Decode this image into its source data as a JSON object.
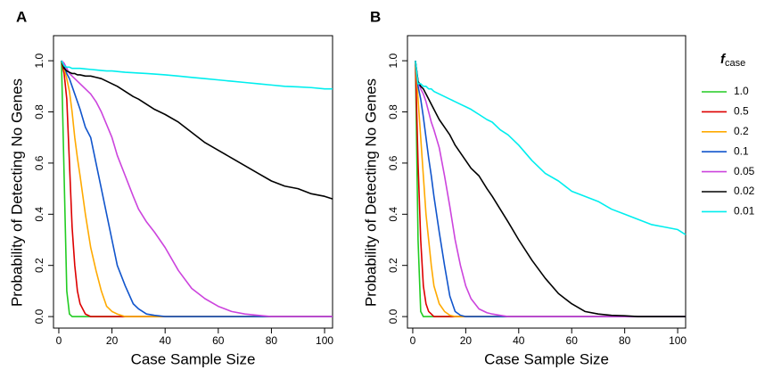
{
  "chart_data": [
    {
      "type": "line",
      "panel_label": "A",
      "x_label": "Case Sample Size",
      "y_label": "Probability of Detecting No Genes",
      "x": [
        1,
        2,
        3,
        4,
        5,
        6,
        7,
        8,
        10,
        12,
        14,
        16,
        18,
        20,
        22,
        25,
        28,
        30,
        33,
        36,
        40,
        45,
        50,
        55,
        60,
        65,
        70,
        75,
        80,
        85,
        90,
        95,
        100,
        103
      ],
      "xlim": [
        -2,
        103
      ],
      "xticks": [
        0,
        20,
        40,
        60,
        80,
        100
      ],
      "ylim": [
        -0.045,
        1.098
      ],
      "yticks": [
        {
          "value": 0,
          "label": "0.0"
        },
        0.2,
        0.4,
        0.6,
        0.8,
        {
          "value": 1,
          "label": "1.0"
        }
      ],
      "series": [
        {
          "name": "1.0",
          "color": "#22cc22",
          "values": [
            1,
            0.55,
            0.1,
            0.01,
            0,
            0,
            0,
            0,
            0,
            0,
            0,
            0,
            0,
            0,
            0,
            0,
            0,
            0,
            0,
            0,
            0,
            0,
            0,
            0,
            0,
            0,
            0,
            0,
            0,
            0,
            0,
            0,
            0,
            0
          ]
        },
        {
          "name": "0.5",
          "color": "#dd0000",
          "values": [
            1,
            0.95,
            0.85,
            0.6,
            0.35,
            0.2,
            0.1,
            0.05,
            0.01,
            0,
            0,
            0,
            0,
            0,
            0,
            0,
            0,
            0,
            0,
            0,
            0,
            0,
            0,
            0,
            0,
            0,
            0,
            0,
            0,
            0,
            0,
            0,
            0,
            0
          ]
        },
        {
          "name": "0.2",
          "color": "#ffaa00",
          "values": [
            1,
            0.97,
            0.93,
            0.88,
            0.8,
            0.7,
            0.62,
            0.55,
            0.4,
            0.27,
            0.18,
            0.1,
            0.04,
            0.02,
            0.01,
            0,
            0,
            0,
            0,
            0,
            0,
            0,
            0,
            0,
            0,
            0,
            0,
            0,
            0,
            0,
            0,
            0,
            0,
            0
          ]
        },
        {
          "name": "0.1",
          "color": "#1155cc",
          "values": [
            1,
            0.98,
            0.95,
            0.93,
            0.9,
            0.87,
            0.84,
            0.81,
            0.74,
            0.7,
            0.6,
            0.5,
            0.4,
            0.3,
            0.2,
            0.12,
            0.05,
            0.03,
            0.01,
            0.005,
            0,
            0,
            0,
            0,
            0,
            0,
            0,
            0,
            0,
            0,
            0,
            0,
            0,
            0
          ]
        },
        {
          "name": "0.05",
          "color": "#cc44dd",
          "values": [
            1,
            0.99,
            0.97,
            0.95,
            0.94,
            0.93,
            0.92,
            0.91,
            0.89,
            0.87,
            0.84,
            0.8,
            0.75,
            0.7,
            0.63,
            0.55,
            0.47,
            0.42,
            0.37,
            0.33,
            0.27,
            0.18,
            0.11,
            0.07,
            0.04,
            0.02,
            0.01,
            0.005,
            0,
            0,
            0,
            0,
            0,
            0
          ]
        },
        {
          "name": "0.02",
          "color": "#000000",
          "values": [
            1,
            0.97,
            0.96,
            0.955,
            0.95,
            0.95,
            0.945,
            0.945,
            0.94,
            0.94,
            0.935,
            0.93,
            0.92,
            0.91,
            0.9,
            0.88,
            0.86,
            0.85,
            0.83,
            0.81,
            0.79,
            0.76,
            0.72,
            0.68,
            0.65,
            0.62,
            0.59,
            0.56,
            0.53,
            0.51,
            0.5,
            0.48,
            0.47,
            0.46
          ]
        },
        {
          "name": "0.01",
          "color": "#00eeee",
          "values": [
            1,
            0.98,
            0.975,
            0.975,
            0.97,
            0.97,
            0.97,
            0.97,
            0.968,
            0.966,
            0.964,
            0.962,
            0.96,
            0.96,
            0.958,
            0.955,
            0.953,
            0.952,
            0.95,
            0.948,
            0.945,
            0.94,
            0.935,
            0.93,
            0.925,
            0.92,
            0.915,
            0.91,
            0.905,
            0.9,
            0.898,
            0.895,
            0.89,
            0.89
          ]
        }
      ]
    },
    {
      "type": "line",
      "panel_label": "B",
      "x_label": "Case Sample Size",
      "y_label": "Probability of Detecting No Genes",
      "x": [
        1,
        2,
        3,
        4,
        5,
        6,
        7,
        8,
        10,
        12,
        14,
        16,
        18,
        20,
        22,
        25,
        28,
        30,
        33,
        36,
        40,
        45,
        50,
        55,
        60,
        65,
        70,
        75,
        80,
        85,
        90,
        95,
        100,
        103
      ],
      "xlim": [
        -2,
        103
      ],
      "xticks": [
        0,
        20,
        40,
        60,
        80,
        100
      ],
      "ylim": [
        -0.045,
        1.098
      ],
      "yticks": [
        {
          "value": 0,
          "label": "0.0"
        },
        0.2,
        0.4,
        0.6,
        0.8,
        {
          "value": 1,
          "label": "1.0"
        }
      ],
      "legend": "outside right",
      "legend_title": "f",
      "legend_title_subscript": "case",
      "series": [
        {
          "name": "1.0",
          "color": "#22cc22",
          "values": [
            1,
            0.3,
            0.02,
            0,
            0,
            0,
            0,
            0,
            0,
            0,
            0,
            0,
            0,
            0,
            0,
            0,
            0,
            0,
            0,
            0,
            0,
            0,
            0,
            0,
            0,
            0,
            0,
            0,
            0,
            0,
            0,
            0,
            0,
            0
          ]
        },
        {
          "name": "0.5",
          "color": "#dd0000",
          "values": [
            1,
            0.6,
            0.3,
            0.12,
            0.05,
            0.02,
            0.01,
            0,
            0,
            0,
            0,
            0,
            0,
            0,
            0,
            0,
            0,
            0,
            0,
            0,
            0,
            0,
            0,
            0,
            0,
            0,
            0,
            0,
            0,
            0,
            0,
            0,
            0,
            0
          ]
        },
        {
          "name": "0.2",
          "color": "#ffaa00",
          "values": [
            1,
            0.85,
            0.7,
            0.55,
            0.4,
            0.3,
            0.2,
            0.12,
            0.05,
            0.02,
            0.005,
            0,
            0,
            0,
            0,
            0,
            0,
            0,
            0,
            0,
            0,
            0,
            0,
            0,
            0,
            0,
            0,
            0,
            0,
            0,
            0,
            0,
            0,
            0
          ]
        },
        {
          "name": "0.1",
          "color": "#1155cc",
          "values": [
            1,
            0.9,
            0.85,
            0.78,
            0.7,
            0.62,
            0.55,
            0.47,
            0.33,
            0.2,
            0.08,
            0.02,
            0.005,
            0,
            0,
            0,
            0,
            0,
            0,
            0,
            0,
            0,
            0,
            0,
            0,
            0,
            0,
            0,
            0,
            0,
            0,
            0,
            0,
            0
          ]
        },
        {
          "name": "0.05",
          "color": "#cc44dd",
          "values": [
            1,
            0.92,
            0.89,
            0.87,
            0.84,
            0.8,
            0.76,
            0.73,
            0.66,
            0.55,
            0.43,
            0.3,
            0.2,
            0.12,
            0.07,
            0.03,
            0.015,
            0.01,
            0.005,
            0,
            0,
            0,
            0,
            0,
            0,
            0,
            0,
            0,
            0,
            0,
            0,
            0,
            0,
            0
          ]
        },
        {
          "name": "0.02",
          "color": "#000000",
          "values": [
            1,
            0.92,
            0.9,
            0.89,
            0.87,
            0.85,
            0.83,
            0.81,
            0.77,
            0.74,
            0.71,
            0.67,
            0.64,
            0.61,
            0.58,
            0.55,
            0.5,
            0.47,
            0.42,
            0.37,
            0.3,
            0.22,
            0.15,
            0.09,
            0.05,
            0.02,
            0.01,
            0.005,
            0.003,
            0,
            0,
            0,
            0,
            0
          ]
        },
        {
          "name": "0.01",
          "color": "#00eeee",
          "values": [
            1,
            0.91,
            0.91,
            0.9,
            0.9,
            0.89,
            0.89,
            0.88,
            0.87,
            0.86,
            0.85,
            0.84,
            0.83,
            0.82,
            0.81,
            0.79,
            0.77,
            0.76,
            0.73,
            0.71,
            0.67,
            0.61,
            0.56,
            0.53,
            0.49,
            0.47,
            0.45,
            0.42,
            0.4,
            0.38,
            0.36,
            0.35,
            0.34,
            0.32
          ]
        }
      ]
    }
  ]
}
